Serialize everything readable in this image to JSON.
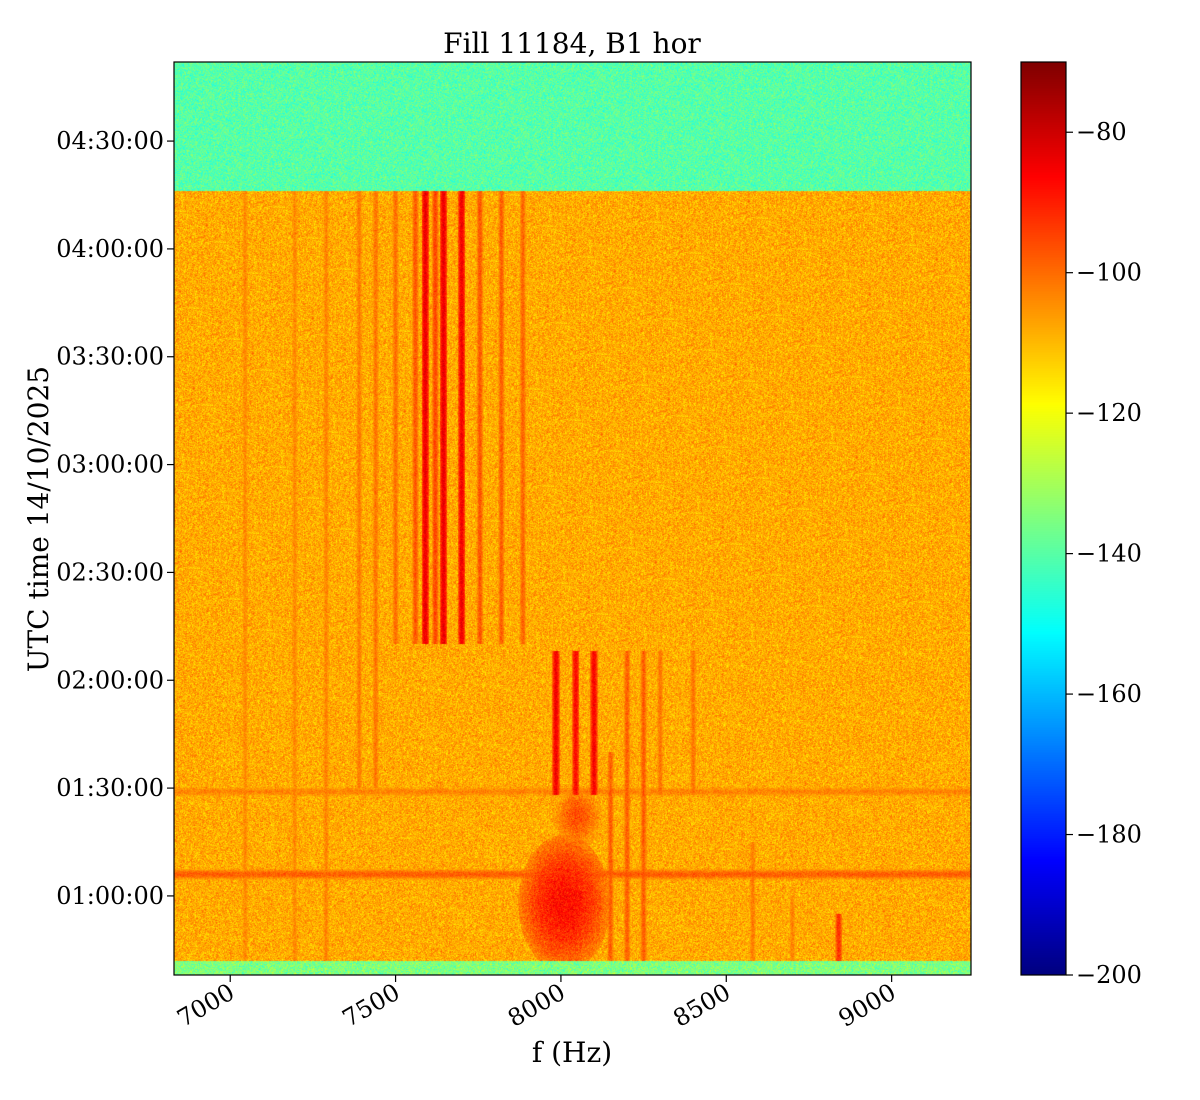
{
  "chart_data": {
    "type": "heatmap",
    "title": "Fill 11184, B1 hor",
    "xlabel": "f (Hz)",
    "ylabel": "UTC time 14/10/2025",
    "xlim": [
      6830,
      9240
    ],
    "x_ticks": [
      {
        "value": 7000,
        "label": "7000"
      },
      {
        "value": 7500,
        "label": "7500"
      },
      {
        "value": 8000,
        "label": "8000"
      },
      {
        "value": 8500,
        "label": "8500"
      },
      {
        "value": 9000,
        "label": "9000"
      }
    ],
    "ylim_minutes": [
      38,
      292
    ],
    "y_ticks": [
      {
        "minutes": 60,
        "label": "01:00:00"
      },
      {
        "minutes": 90,
        "label": "01:30:00"
      },
      {
        "minutes": 120,
        "label": "02:00:00"
      },
      {
        "minutes": 150,
        "label": "02:30:00"
      },
      {
        "minutes": 180,
        "label": "03:00:00"
      },
      {
        "minutes": 210,
        "label": "03:30:00"
      },
      {
        "minutes": 240,
        "label": "04:00:00"
      },
      {
        "minutes": 270,
        "label": "04:30:00"
      }
    ],
    "colorbar": {
      "colormap": "jet",
      "range": [
        -200,
        -70
      ],
      "ticks": [
        {
          "value": -80,
          "label": "−80"
        },
        {
          "value": -100,
          "label": "−100"
        },
        {
          "value": -120,
          "label": "−120"
        },
        {
          "value": -140,
          "label": "−140"
        },
        {
          "value": -160,
          "label": "−160"
        },
        {
          "value": -180,
          "label": "−180"
        },
        {
          "value": -200,
          "label": "−200"
        }
      ]
    },
    "regions": {
      "background_level_db": -108,
      "no_signal_after_minutes": 256,
      "no_signal_level_db": -140,
      "bottom_noise_band_minutes": [
        38,
        42
      ],
      "bottom_noise_level_db": -135
    },
    "lines": [
      {
        "f": 7590,
        "t_start": 130,
        "t_end": 256,
        "level_db": -84
      },
      {
        "f": 7645,
        "t_start": 130,
        "t_end": 256,
        "level_db": -84
      },
      {
        "f": 7700,
        "t_start": 130,
        "t_end": 256,
        "level_db": -85
      },
      {
        "f": 7620,
        "t_start": 130,
        "t_end": 256,
        "level_db": -95
      },
      {
        "f": 7560,
        "t_start": 130,
        "t_end": 256,
        "level_db": -97
      },
      {
        "f": 7755,
        "t_start": 130,
        "t_end": 256,
        "level_db": -97
      },
      {
        "f": 7820,
        "t_start": 130,
        "t_end": 256,
        "level_db": -98
      },
      {
        "f": 7885,
        "t_start": 130,
        "t_end": 256,
        "level_db": -99
      },
      {
        "f": 7500,
        "t_start": 130,
        "t_end": 256,
        "level_db": -100
      },
      {
        "f": 7440,
        "t_start": 90,
        "t_end": 256,
        "level_db": -101
      },
      {
        "f": 7390,
        "t_start": 90,
        "t_end": 256,
        "level_db": -102
      },
      {
        "f": 7290,
        "t_start": 40,
        "t_end": 256,
        "level_db": -103
      },
      {
        "f": 7195,
        "t_start": 40,
        "t_end": 256,
        "level_db": -104
      },
      {
        "f": 7045,
        "t_start": 40,
        "t_end": 256,
        "level_db": -104
      },
      {
        "f": 7985,
        "t_start": 88,
        "t_end": 128,
        "level_db": -85
      },
      {
        "f": 8045,
        "t_start": 88,
        "t_end": 128,
        "level_db": -87
      },
      {
        "f": 8100,
        "t_start": 88,
        "t_end": 128,
        "level_db": -86
      },
      {
        "f": 8200,
        "t_start": 40,
        "t_end": 128,
        "level_db": -98
      },
      {
        "f": 8250,
        "t_start": 40,
        "t_end": 128,
        "level_db": -98
      },
      {
        "f": 8300,
        "t_start": 88,
        "t_end": 128,
        "level_db": -101
      },
      {
        "f": 8400,
        "t_start": 88,
        "t_end": 128,
        "level_db": -101
      },
      {
        "f": 8150,
        "t_start": 40,
        "t_end": 100,
        "level_db": -98
      },
      {
        "f": 8580,
        "t_start": 40,
        "t_end": 75,
        "level_db": -102
      },
      {
        "f": 8840,
        "t_start": 40,
        "t_end": 55,
        "level_db": -92
      },
      {
        "f": 8700,
        "t_start": 40,
        "t_end": 60,
        "level_db": -103
      }
    ],
    "blobs": [
      {
        "f": 8010,
        "t": 58,
        "width_hz": 220,
        "height_min": 30,
        "level_db": -88
      },
      {
        "f": 8050,
        "t": 82,
        "width_hz": 120,
        "height_min": 14,
        "level_db": -96
      }
    ],
    "horizontal_features": [
      {
        "t": 66,
        "level_db": -98
      },
      {
        "t": 89,
        "level_db": -103
      }
    ]
  }
}
